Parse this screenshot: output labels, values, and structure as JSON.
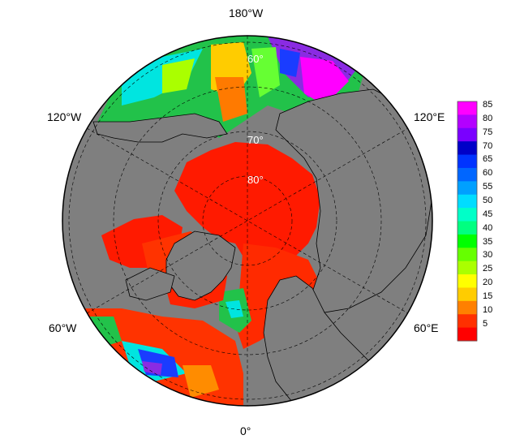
{
  "map": {
    "projection": "north-polar-stereographic",
    "lon_labels": {
      "top": "180°W",
      "bottom": "0°",
      "upper_left": "120°W",
      "upper_right": "120°E",
      "lower_left": "60°W",
      "lower_right": "60°E"
    },
    "lat_labels": [
      "60°",
      "70°",
      "80°"
    ],
    "colors": {
      "ocean_land_background": "#7f7f7f",
      "coastline": "#000000",
      "grid": "#000000"
    }
  },
  "colorbar": {
    "ticks": [
      "85",
      "80",
      "75",
      "70",
      "65",
      "60",
      "55",
      "50",
      "45",
      "40",
      "35",
      "30",
      "25",
      "20",
      "15",
      "10",
      "5"
    ],
    "colors": [
      "#ff00ff",
      "#b300ff",
      "#7a00ff",
      "#0000c8",
      "#0033ff",
      "#0066ff",
      "#00a0ff",
      "#00ddff",
      "#00ffc8",
      "#00ff80",
      "#00ff00",
      "#66ff00",
      "#aaff00",
      "#ffff00",
      "#ffcc00",
      "#ff8000",
      "#ff3000",
      "#ff0000"
    ]
  }
}
